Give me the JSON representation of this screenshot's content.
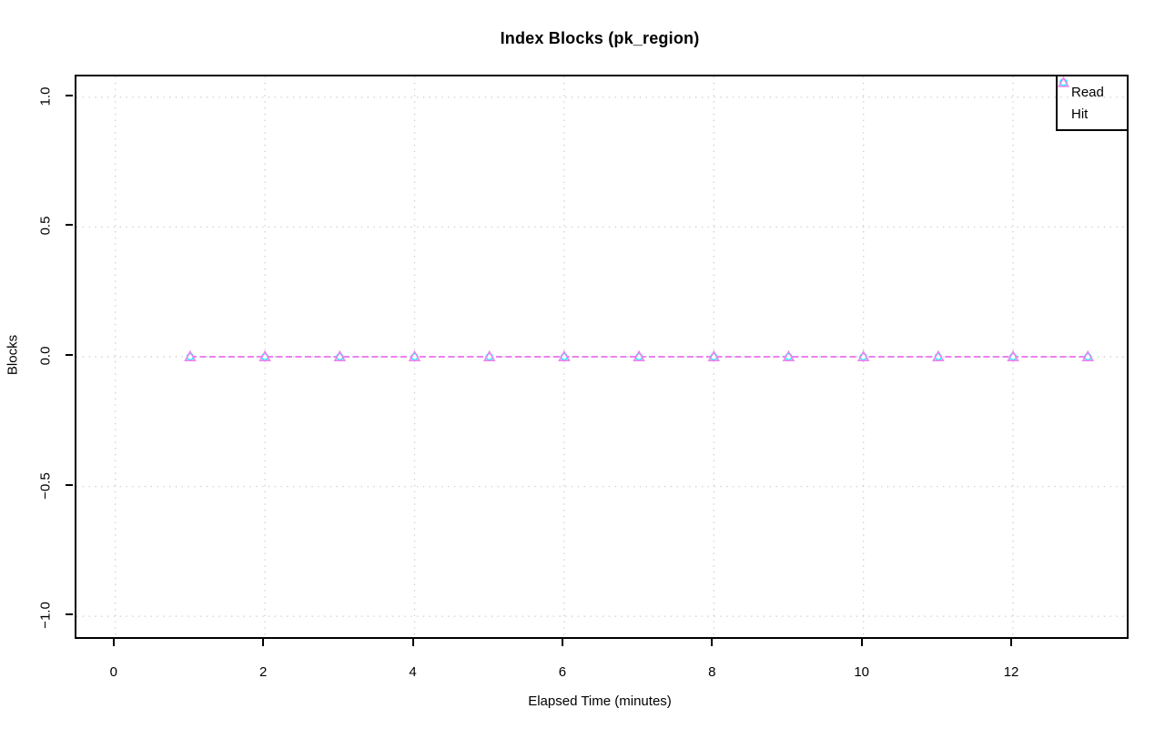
{
  "background": "#FFFFFF",
  "chart_data": {
    "type": "line",
    "title": "Index Blocks (pk_region)",
    "xlabel": "Elapsed Time (minutes)",
    "ylabel": "Blocks",
    "xlim": [
      -0.52,
      13.52
    ],
    "ylim": [
      -1.08,
      1.08
    ],
    "x_ticks": [
      0,
      2,
      4,
      6,
      8,
      10,
      12
    ],
    "x_tick_labels": [
      "0",
      "2",
      "4",
      "6",
      "8",
      "10",
      "12"
    ],
    "y_ticks": [
      1.0,
      0.5,
      0.0,
      -0.5,
      -1.0
    ],
    "y_tick_labels": [
      "1.0",
      "0.5",
      "0.0",
      "−0.5",
      "−1.0"
    ],
    "grid": true,
    "grid_style": "dotted",
    "legend_position": "top-right",
    "x": [
      1,
      2,
      3,
      4,
      5,
      6,
      7,
      8,
      9,
      10,
      11,
      12,
      13
    ],
    "series": [
      {
        "name": "Read",
        "marker": "circle",
        "color": "#00FFFF",
        "values": [
          0,
          0,
          0,
          0,
          0,
          0,
          0,
          0,
          0,
          0,
          0,
          0,
          0
        ]
      },
      {
        "name": "Hit",
        "marker": "triangle",
        "color": "#EE82EE",
        "values": [
          0,
          0,
          0,
          0,
          0,
          0,
          0,
          0,
          0,
          0,
          0,
          0,
          0
        ]
      }
    ]
  },
  "colors": {
    "grid": "#D2D2D2",
    "axis": "#000000",
    "text": "#000000",
    "read_series": "#00FFFF",
    "hit_series": "#EE82EE"
  },
  "legend": {
    "items": [
      {
        "label": "Read"
      },
      {
        "label": "Hit"
      }
    ]
  }
}
